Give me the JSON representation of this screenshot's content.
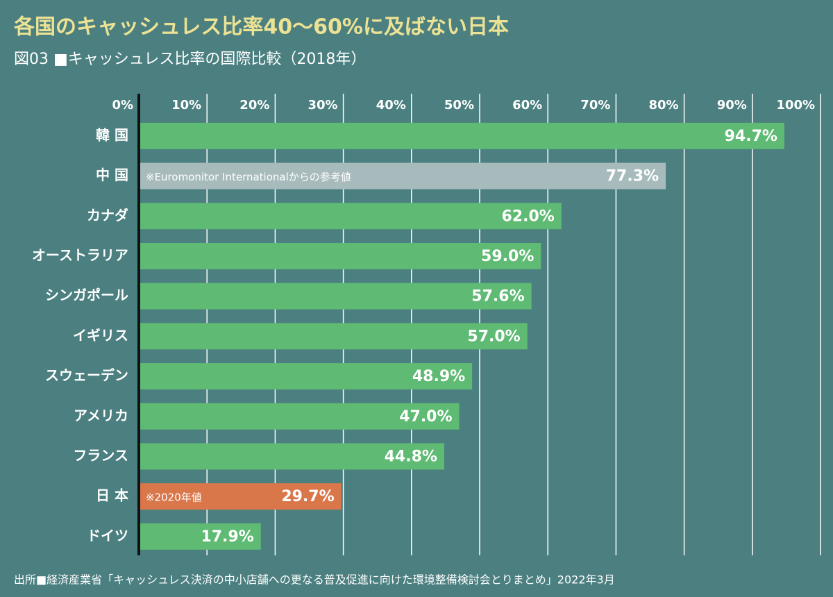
{
  "chart_data": {
    "type": "bar",
    "orientation": "horizontal",
    "title": "各国のキャッシュレス比率40〜60%に及ばない日本",
    "subtitle": "図03 ■キャッシュレス比率の国際比較（2018年）",
    "source": "出所■経済産業省「キャッシュレス決済の中小店舗への更なる普及促進に向けた環境整備検討会とりまとめ」2022年3月",
    "categories": [
      "韓 国",
      "中 国",
      "カナダ",
      "オーストラリア",
      "シンガポール",
      "イギリス",
      "スウェーデン",
      "アメリカ",
      "フランス",
      "日 本",
      "ドイツ"
    ],
    "values": [
      94.7,
      77.3,
      62.0,
      59.0,
      57.6,
      57.0,
      48.9,
      47.0,
      44.8,
      29.7,
      17.9
    ],
    "value_labels": [
      "94.7%",
      "77.3%",
      "62.0%",
      "59.0%",
      "57.6%",
      "57.0%",
      "48.9%",
      "47.0%",
      "44.8%",
      "29.7%",
      "17.9%"
    ],
    "colors": [
      "#5fba74",
      "#a7bbbd",
      "#5fba74",
      "#5fba74",
      "#5fba74",
      "#5fba74",
      "#5fba74",
      "#5fba74",
      "#5fba74",
      "#d9774b",
      "#5fba74"
    ],
    "annotations": [
      {
        "category": "中 国",
        "text": "※Euromonitor Internationalからの参考値"
      },
      {
        "category": "日 本",
        "text": "※2020年値"
      }
    ],
    "xlim": [
      0,
      100
    ],
    "xticks": [
      {
        "value": 0,
        "label": "0%"
      },
      {
        "value": 10,
        "label": "10%"
      },
      {
        "value": 20,
        "label": "20%"
      },
      {
        "value": 30,
        "label": "30%"
      },
      {
        "value": 40,
        "label": "40%"
      },
      {
        "value": 50,
        "label": "50%"
      },
      {
        "value": 60,
        "label": "60%"
      },
      {
        "value": 70,
        "label": "70%"
      },
      {
        "value": 80,
        "label": "80%"
      },
      {
        "value": 90,
        "label": "90%"
      },
      {
        "value": 100,
        "label": "100%"
      }
    ],
    "grid": true
  }
}
